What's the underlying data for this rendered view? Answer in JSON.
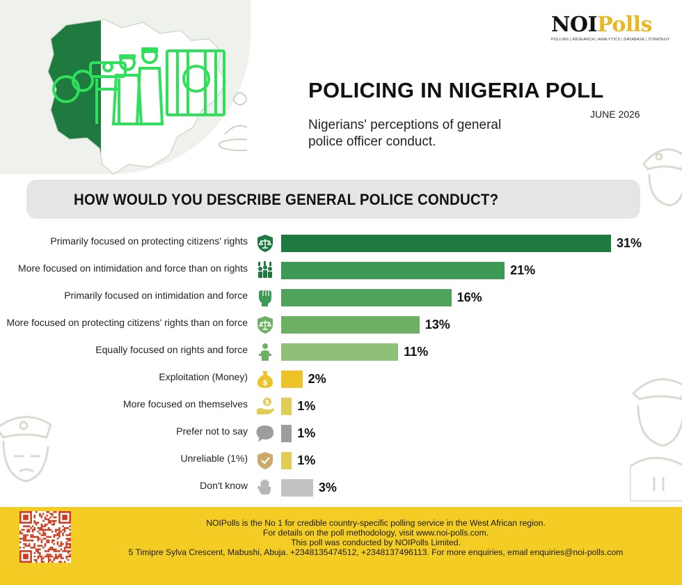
{
  "brand": {
    "logo_primary": "NOI",
    "logo_secondary": "Polls",
    "logo_tagline": "POLLING | RESEARCH | ANALYTICS | DATABASE | STRATEGY"
  },
  "header": {
    "title": "POLICING IN NIGERIA POLL",
    "date": "JUNE 2026",
    "subtitle": "Nigerians' perceptions of general police officer conduct."
  },
  "question": "HOW WOULD YOU DESCRIBE GENERAL POLICE CONDUCT?",
  "colors": {
    "dark_green": "#1e7a3f",
    "mid_green": "#3d9a54",
    "green": "#4fa35a",
    "light_green": "#6cb063",
    "pale_green": "#8fc07a",
    "gold": "#edc327",
    "yellow": "#e2cd54",
    "gray": "#9d9d9d",
    "light_gray": "#c3c3c3",
    "banner_gray": "#e5e5e5",
    "footer_yellow": "#f3cc24"
  },
  "chart_data": {
    "type": "bar",
    "orientation": "horizontal",
    "title": "HOW WOULD YOU DESCRIBE GENERAL POLICE CONDUCT?",
    "categories": [
      "Primarily focused on protecting citizens' rights",
      "More focused on intimidation and force than on rights",
      "Primarily focused on intimidation and force",
      "More focused on protecting citizens' rights than on force",
      "Equally focused on rights and force",
      "Exploitation (Money)",
      "More focused on themselves",
      "Prefer not to say",
      "Unreliable (1%)",
      "Don't know"
    ],
    "values": [
      31,
      21,
      16,
      13,
      11,
      2,
      1,
      1,
      1,
      3
    ],
    "value_labels": [
      "31%",
      "21%",
      "16%",
      "13%",
      "11%",
      "2%",
      "1%",
      "1%",
      "1%",
      "3%"
    ],
    "unit": "%",
    "bar_colors": [
      "#1e7a3f",
      "#3d9a54",
      "#4fa35a",
      "#6cb063",
      "#8fc07a",
      "#edc327",
      "#e2cd54",
      "#9d9d9d",
      "#e2cd54",
      "#c3c3c3"
    ],
    "icons": [
      "scales-shield-icon",
      "crowd-fists-icon",
      "raised-fist-icon",
      "scales-shield-icon",
      "person-podium-icon",
      "money-bag-icon",
      "hand-coin-icon",
      "speech-bubble-icon",
      "check-shield-icon",
      "open-hand-icon"
    ],
    "xlim": [
      0,
      31
    ],
    "grid": false,
    "legend": "none"
  },
  "footer": {
    "lines": [
      "NOIPolls is the No 1 for credible country-specific polling service in the West African region.",
      "For details on the poll methodology, visit www.noi-polls.com.",
      "This poll was conducted by NOIPolls Limited.",
      "5 Timipre Sylva Crescent, Mabushi, Abuja. +2348135474512, +2348137496113. For more enquiries, email enquiries@noi-polls.com"
    ]
  }
}
